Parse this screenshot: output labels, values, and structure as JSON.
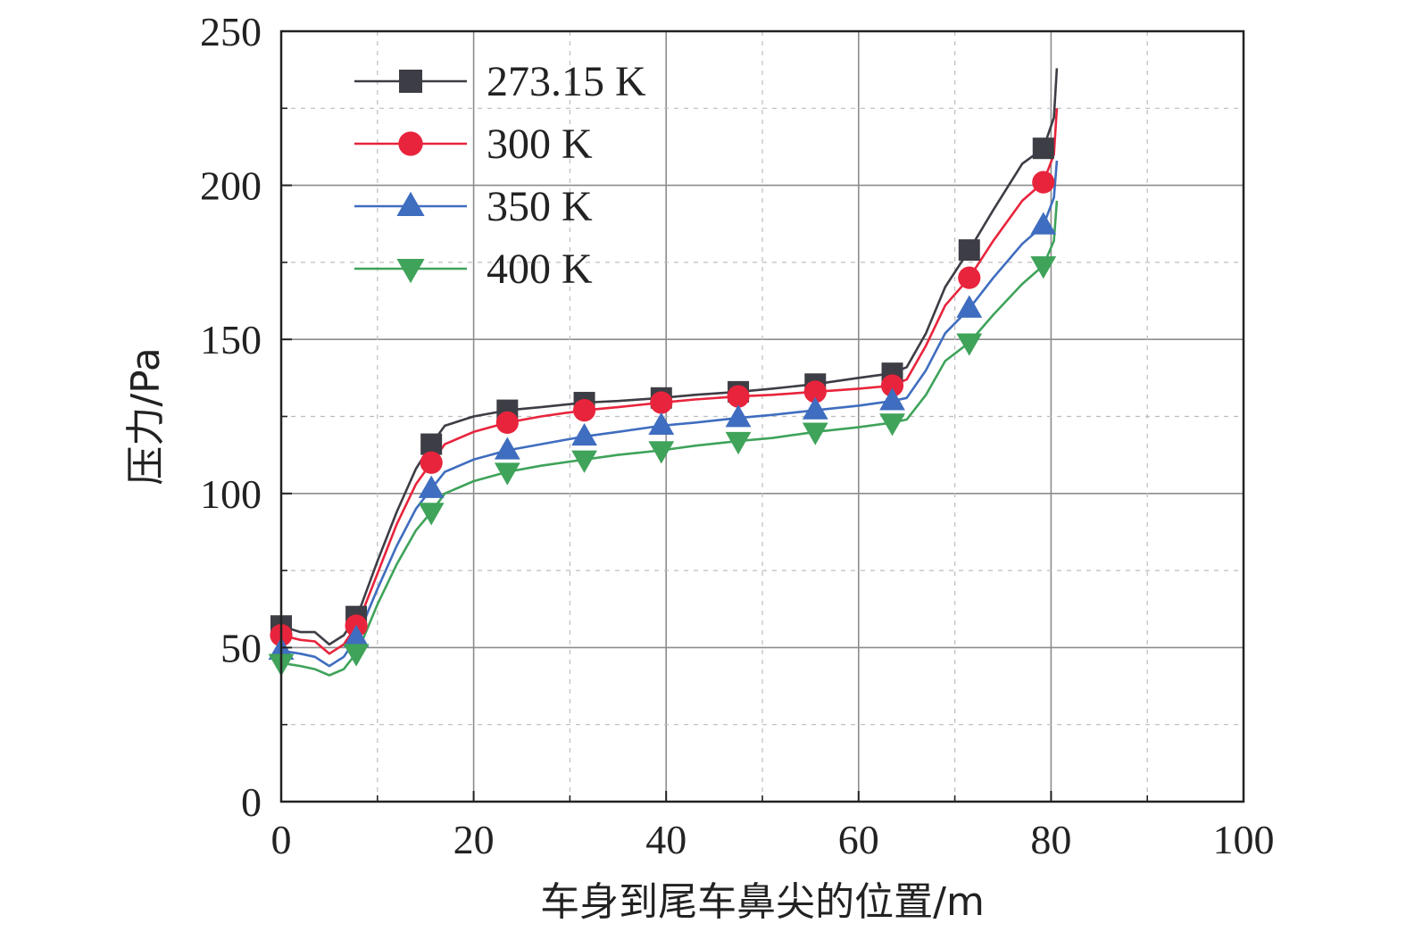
{
  "chart_data": {
    "type": "line",
    "xlabel": "车身到尾车鼻尖的位置/m",
    "ylabel": "压力/Pa",
    "xlim": [
      0,
      100
    ],
    "ylim": [
      0,
      250
    ],
    "xticks": [
      0,
      20,
      40,
      60,
      80,
      100
    ],
    "yticks": [
      0,
      50,
      100,
      150,
      200,
      250
    ],
    "grid": true,
    "legend_position": "top-left",
    "series": [
      {
        "name": "273.15 K",
        "color": "#3d3d45",
        "marker": "square",
        "x": [
          0,
          2,
          3.5,
          5,
          6.5,
          8,
          10,
          12,
          14,
          15.6,
          17,
          20,
          23.5,
          27,
          31.5,
          35,
          39.5,
          43,
          47.5,
          51,
          55.5,
          60,
          63.5,
          65,
          67,
          69,
          71.5,
          74,
          77,
          79.2,
          80.3,
          80.6
        ],
        "y": [
          57,
          55,
          55,
          51,
          54,
          61,
          78,
          94,
          108,
          116,
          122,
          125,
          127,
          128,
          129.5,
          130,
          131,
          132,
          133,
          134,
          135.5,
          137.5,
          139,
          141,
          152,
          167,
          179,
          192,
          207,
          212,
          222,
          238
        ]
      },
      {
        "name": "300 K",
        "color": "#e8243c",
        "marker": "circle",
        "x": [
          0,
          2,
          3.5,
          5,
          6.5,
          8,
          10,
          12,
          14,
          15.6,
          17,
          20,
          23.5,
          27,
          31.5,
          35,
          39.5,
          43,
          47.5,
          51,
          55.5,
          60,
          63.5,
          65,
          67,
          69,
          71.5,
          74,
          77,
          79.2,
          80.3,
          80.6
        ],
        "y": [
          54,
          52.5,
          52,
          48,
          51,
          58,
          74,
          90,
          103,
          110,
          116,
          120,
          123,
          125,
          127,
          128,
          129.5,
          130.5,
          131.5,
          132,
          133,
          134,
          135,
          137,
          148,
          161,
          170,
          182,
          195,
          201,
          210,
          225
        ]
      },
      {
        "name": "350 K",
        "color": "#3f6dbf",
        "marker": "triangle-up",
        "x": [
          0,
          2,
          3.5,
          5,
          6.5,
          8,
          10,
          12,
          14,
          15.6,
          17,
          20,
          23.5,
          27,
          31.5,
          35,
          39.5,
          43,
          47.5,
          51,
          55.5,
          60,
          63.5,
          65,
          67,
          69,
          71.5,
          74,
          77,
          79.2,
          80.3,
          80.6
        ],
        "y": [
          49,
          48,
          47,
          44,
          47,
          54,
          69,
          83,
          95,
          101.5,
          107,
          111,
          114,
          116,
          118.5,
          120,
          122,
          123,
          124.5,
          125.5,
          127,
          128.5,
          130,
          131,
          140,
          152,
          160,
          170,
          181,
          187,
          196,
          208
        ]
      },
      {
        "name": "400 K",
        "color": "#3fa35a",
        "marker": "triangle-down",
        "x": [
          0,
          2,
          3.5,
          5,
          6.5,
          8,
          10,
          12,
          14,
          15.6,
          17,
          20,
          23.5,
          27,
          31.5,
          35,
          39.5,
          43,
          47.5,
          51,
          55.5,
          60,
          63.5,
          65,
          67,
          69,
          71.5,
          74,
          77,
          79.2,
          80.3,
          80.6
        ],
        "y": [
          45,
          44,
          43,
          41,
          43,
          49,
          64,
          77,
          88,
          94,
          100,
          104,
          107,
          109,
          111,
          112.5,
          114,
          115.5,
          117,
          118,
          120,
          121.5,
          123,
          124,
          132,
          143,
          149,
          158,
          168,
          174,
          182,
          195
        ]
      }
    ],
    "markers_at": [
      0,
      7.8,
      15.6,
      23.5,
      31.5,
      39.5,
      47.5,
      55.5,
      63.5,
      71.5,
      79.2
    ]
  }
}
